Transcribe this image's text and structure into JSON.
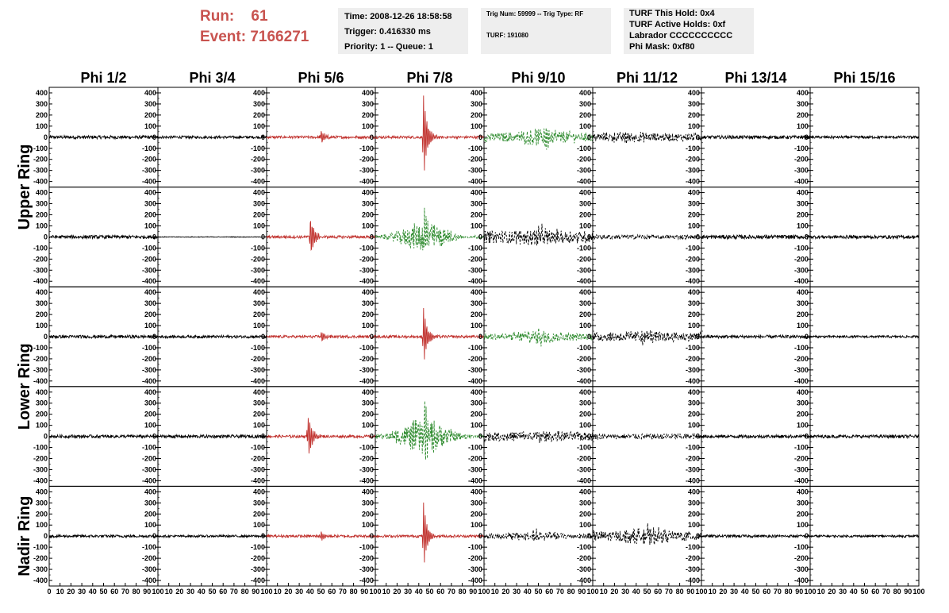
{
  "header": {
    "run_label": "Run:",
    "run_value": "61",
    "event_label": "Event:",
    "event_value": "7166271",
    "time": "Time: 2008-12-26 18:58:58",
    "trigger": "Trigger: 0.416330 ms",
    "priority": "Priority: 1 -- Queue: 1",
    "trig_num": "Trig Num: 59999 -- Trig Type: RF",
    "turf": "TURF: 191080",
    "turf_hold": "TURF This Hold: 0x4",
    "turf_active": "TURF Active Holds: 0xf",
    "labrador": "Labrador CCCCCCCCCC",
    "phi_mask": "Phi Mask: 0xf80"
  },
  "columns": [
    "Phi 1/2",
    "Phi 3/4",
    "Phi 5/6",
    "Phi 7/8",
    "Phi 9/10",
    "Phi 11/12",
    "Phi 13/14",
    "Phi 15/16"
  ],
  "ring_labels": [
    "Upper Ring",
    "Lower Ring",
    "Nadir Ring"
  ],
  "colors": {
    "red": "#c0302c",
    "green": "#2e8b2e",
    "black": "#000000",
    "run_text": "#c8534f"
  },
  "chart_data": {
    "type": "line",
    "title": "",
    "xlabel": "",
    "ylabel": "",
    "xlim": [
      0,
      100
    ],
    "ylim": [
      -450,
      450
    ],
    "y_ticks": [
      400,
      300,
      200,
      100,
      0,
      -100,
      -200,
      -300,
      -400
    ],
    "x_ticks": [
      0,
      10,
      20,
      30,
      40,
      50,
      60,
      70,
      80,
      90,
      100
    ],
    "grid": false,
    "rows": [
      {
        "ring": "Upper Ring",
        "antenna": 1
      },
      {
        "ring": "Upper Ring",
        "antenna": 2
      },
      {
        "ring": "Lower Ring",
        "antenna": 1
      },
      {
        "ring": "Lower Ring",
        "antenna": 2
      },
      {
        "ring": "Nadir Ring",
        "antenna": 1
      }
    ],
    "panels": [
      [
        {
          "color": "black",
          "style": "solid",
          "noise": 15,
          "pulse_t": 0,
          "pulse_amp": 0
        },
        {
          "color": "black",
          "style": "solid",
          "noise": 12,
          "pulse_t": 0,
          "pulse_amp": 0
        },
        {
          "color": "red",
          "style": "solid",
          "noise": 12,
          "pulse_t": 50,
          "pulse_amp": 70
        },
        {
          "color": "red",
          "style": "solid",
          "noise": 12,
          "pulse_t": 44,
          "pulse_amp": 420
        },
        {
          "color": "green",
          "style": "dashed",
          "noise": 40,
          "pulse_t": 55,
          "pulse_amp": 110
        },
        {
          "color": "black",
          "style": "dashed",
          "noise": 35,
          "pulse_t": 30,
          "pulse_amp": 50
        },
        {
          "color": "black",
          "style": "solid",
          "noise": 15,
          "pulse_t": 0,
          "pulse_amp": 0
        },
        {
          "color": "black",
          "style": "solid",
          "noise": 12,
          "pulse_t": 0,
          "pulse_amp": 0
        }
      ],
      [
        {
          "color": "black",
          "style": "solid",
          "noise": 15,
          "pulse_t": 0,
          "pulse_amp": 0
        },
        {
          "color": "black",
          "style": "solid",
          "noise": 3,
          "pulse_t": 0,
          "pulse_amp": 0
        },
        {
          "color": "red",
          "style": "solid",
          "noise": 12,
          "pulse_t": 40,
          "pulse_amp": 220
        },
        {
          "color": "green",
          "style": "dashed",
          "noise": 12,
          "pulse_t": 45,
          "pulse_amp": 260
        },
        {
          "color": "black",
          "style": "dashed",
          "noise": 55,
          "pulse_t": 50,
          "pulse_amp": 80
        },
        {
          "color": "black",
          "style": "dashed",
          "noise": 20,
          "pulse_t": 0,
          "pulse_amp": 0
        },
        {
          "color": "black",
          "style": "solid",
          "noise": 18,
          "pulse_t": 0,
          "pulse_amp": 0
        },
        {
          "color": "black",
          "style": "solid",
          "noise": 15,
          "pulse_t": 0,
          "pulse_amp": 0
        }
      ],
      [
        {
          "color": "black",
          "style": "solid",
          "noise": 14,
          "pulse_t": 0,
          "pulse_amp": 0
        },
        {
          "color": "black",
          "style": "solid",
          "noise": 12,
          "pulse_t": 0,
          "pulse_amp": 0
        },
        {
          "color": "red",
          "style": "solid",
          "noise": 12,
          "pulse_t": 50,
          "pulse_amp": 60
        },
        {
          "color": "red",
          "style": "solid",
          "noise": 12,
          "pulse_t": 44,
          "pulse_amp": 290
        },
        {
          "color": "green",
          "style": "dashed",
          "noise": 30,
          "pulse_t": 50,
          "pulse_amp": 90
        },
        {
          "color": "black",
          "style": "dashed",
          "noise": 40,
          "pulse_t": 45,
          "pulse_amp": 60
        },
        {
          "color": "black",
          "style": "solid",
          "noise": 14,
          "pulse_t": 0,
          "pulse_amp": 0
        },
        {
          "color": "black",
          "style": "solid",
          "noise": 10,
          "pulse_t": 0,
          "pulse_amp": 0
        }
      ],
      [
        {
          "color": "black",
          "style": "solid",
          "noise": 14,
          "pulse_t": 0,
          "pulse_amp": 0
        },
        {
          "color": "black",
          "style": "solid",
          "noise": 14,
          "pulse_t": 0,
          "pulse_amp": 0
        },
        {
          "color": "red",
          "style": "solid",
          "noise": 12,
          "pulse_t": 38,
          "pulse_amp": 220
        },
        {
          "color": "green",
          "style": "dashed",
          "noise": 15,
          "pulse_t": 45,
          "pulse_amp": 310
        },
        {
          "color": "black",
          "style": "dashed",
          "noise": 40,
          "pulse_t": 50,
          "pulse_amp": 40
        },
        {
          "color": "black",
          "style": "dashed",
          "noise": 25,
          "pulse_t": 0,
          "pulse_amp": 0
        },
        {
          "color": "black",
          "style": "solid",
          "noise": 14,
          "pulse_t": 0,
          "pulse_amp": 0
        },
        {
          "color": "black",
          "style": "solid",
          "noise": 14,
          "pulse_t": 0,
          "pulse_amp": 0
        }
      ],
      [
        {
          "color": "black",
          "style": "solid",
          "noise": 12,
          "pulse_t": 0,
          "pulse_amp": 0
        },
        {
          "color": "black",
          "style": "solid",
          "noise": 10,
          "pulse_t": 0,
          "pulse_amp": 0
        },
        {
          "color": "red",
          "style": "solid",
          "noise": 12,
          "pulse_t": 50,
          "pulse_amp": 50
        },
        {
          "color": "red",
          "style": "solid",
          "noise": 12,
          "pulse_t": 44,
          "pulse_amp": 330
        },
        {
          "color": "black",
          "style": "dashed",
          "noise": 25,
          "pulse_t": 45,
          "pulse_amp": 60
        },
        {
          "color": "black",
          "style": "dashed",
          "noise": 45,
          "pulse_t": 50,
          "pulse_amp": 90
        },
        {
          "color": "black",
          "style": "solid",
          "noise": 12,
          "pulse_t": 0,
          "pulse_amp": 0
        },
        {
          "color": "black",
          "style": "solid",
          "noise": 10,
          "pulse_t": 0,
          "pulse_amp": 0
        }
      ]
    ]
  }
}
